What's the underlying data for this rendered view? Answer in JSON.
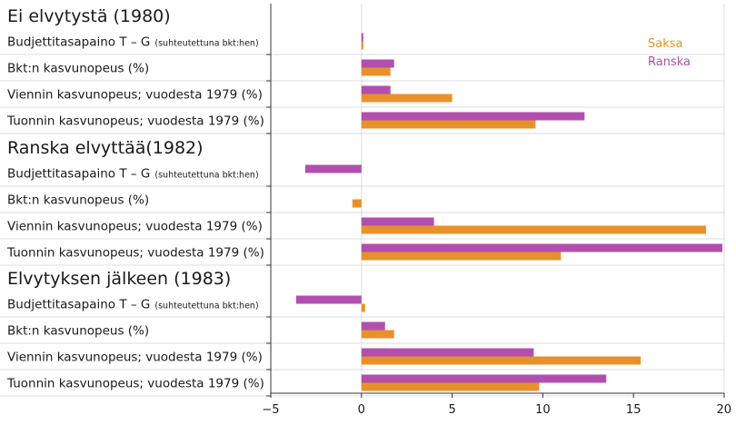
{
  "colors": {
    "Saksa": "#e8912a",
    "Ranska": "#b24fae",
    "separator": "#dddddd",
    "axis": "#333333"
  },
  "chart_data": {
    "type": "bar",
    "orientation": "horizontal",
    "xlim": [
      -5,
      20
    ],
    "xticks": [
      -5,
      0,
      5,
      10,
      15,
      20
    ],
    "xtick_labels": [
      "−5",
      "0",
      "5",
      "10",
      "15",
      "20"
    ],
    "legend": [
      "Saksa",
      "Ranska"
    ],
    "legend_position": "top-right",
    "groups": [
      {
        "title": "Ei elvytystä (1980)",
        "rows": [
          {
            "label": "Budjettitasapaino T – G",
            "label_small": "(suhteutettuna bkt:hen)",
            "Ranska": 0.1,
            "Saksa": 0.1
          },
          {
            "label": "Bkt:n kasvunopeus (%)",
            "label_small": "",
            "Ranska": 1.8,
            "Saksa": 1.6
          },
          {
            "label": "Viennin kasvunopeus; vuodesta 1979 (%)",
            "label_small": "",
            "Ranska": 1.6,
            "Saksa": 5.0
          },
          {
            "label": "Tuonnin kasvunopeus; vuodesta 1979 (%)",
            "label_small": "",
            "Ranska": 12.3,
            "Saksa": 9.6
          }
        ]
      },
      {
        "title": "Ranska elvyttää(1982)",
        "rows": [
          {
            "label": "Budjettitasapaino T – G",
            "label_small": "(suhteutettuna bkt:hen)",
            "Ranska": -3.1,
            "Saksa": 0.0
          },
          {
            "label": "Bkt:n kasvunopeus (%)",
            "label_small": "",
            "Ranska": 0.0,
            "Saksa": -0.5
          },
          {
            "label": "Viennin kasvunopeus; vuodesta 1979 (%)",
            "label_small": "",
            "Ranska": 4.0,
            "Saksa": 19.0
          },
          {
            "label": "Tuonnin kasvunopeus; vuodesta 1979 (%)",
            "label_small": "",
            "Ranska": 19.9,
            "Saksa": 11.0
          }
        ]
      },
      {
        "title": "Elvytyksen jälkeen (1983)",
        "rows": [
          {
            "label": "Budjettitasapaino T – G",
            "label_small": "(suhteutettuna bkt:hen)",
            "Ranska": -3.6,
            "Saksa": 0.2
          },
          {
            "label": "Bkt:n kasvunopeus (%)",
            "label_small": "",
            "Ranska": 1.3,
            "Saksa": 1.8
          },
          {
            "label": "Viennin kasvunopeus; vuodesta 1979 (%)",
            "label_small": "",
            "Ranska": 9.5,
            "Saksa": 15.4
          },
          {
            "label": "Tuonnin kasvunopeus; vuodesta 1979 (%)",
            "label_small": "",
            "Ranska": 13.5,
            "Saksa": 9.8
          }
        ]
      }
    ]
  }
}
